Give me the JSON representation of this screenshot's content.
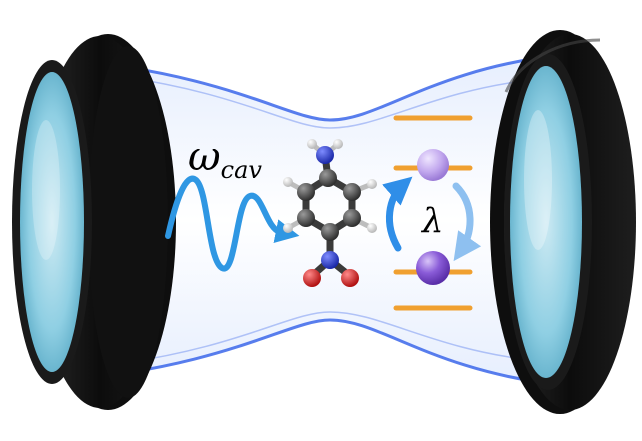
{
  "labels": {
    "cavity_frequency_symbol": "ω",
    "cavity_frequency_subscript": "cav",
    "coupling_symbol": "λ"
  },
  "icons": {
    "left_mirror": "cavity-mirror-icon",
    "right_mirror": "cavity-mirror-icon",
    "photon": "photon-wave-icon",
    "molecule": "molecule-icon",
    "two_level_system": "energy-levels-icon"
  },
  "colors": {
    "mirror_frame": "#151515",
    "mirror_glass": "#7fc8de",
    "cavity_beam": "#c8d8fb",
    "cavity_edge": "#2f5ee8",
    "photon_wave": "#2f97e3",
    "energy_level": "#f0a030",
    "excitation_ball": "#7a48c8",
    "transition_arrow": "#2f8ee8",
    "atom_carbon": "#4a4a4a",
    "atom_hydrogen": "#f2f2f2",
    "atom_nitrogen": "#2a3ecf",
    "atom_oxygen": "#e02a2a"
  }
}
